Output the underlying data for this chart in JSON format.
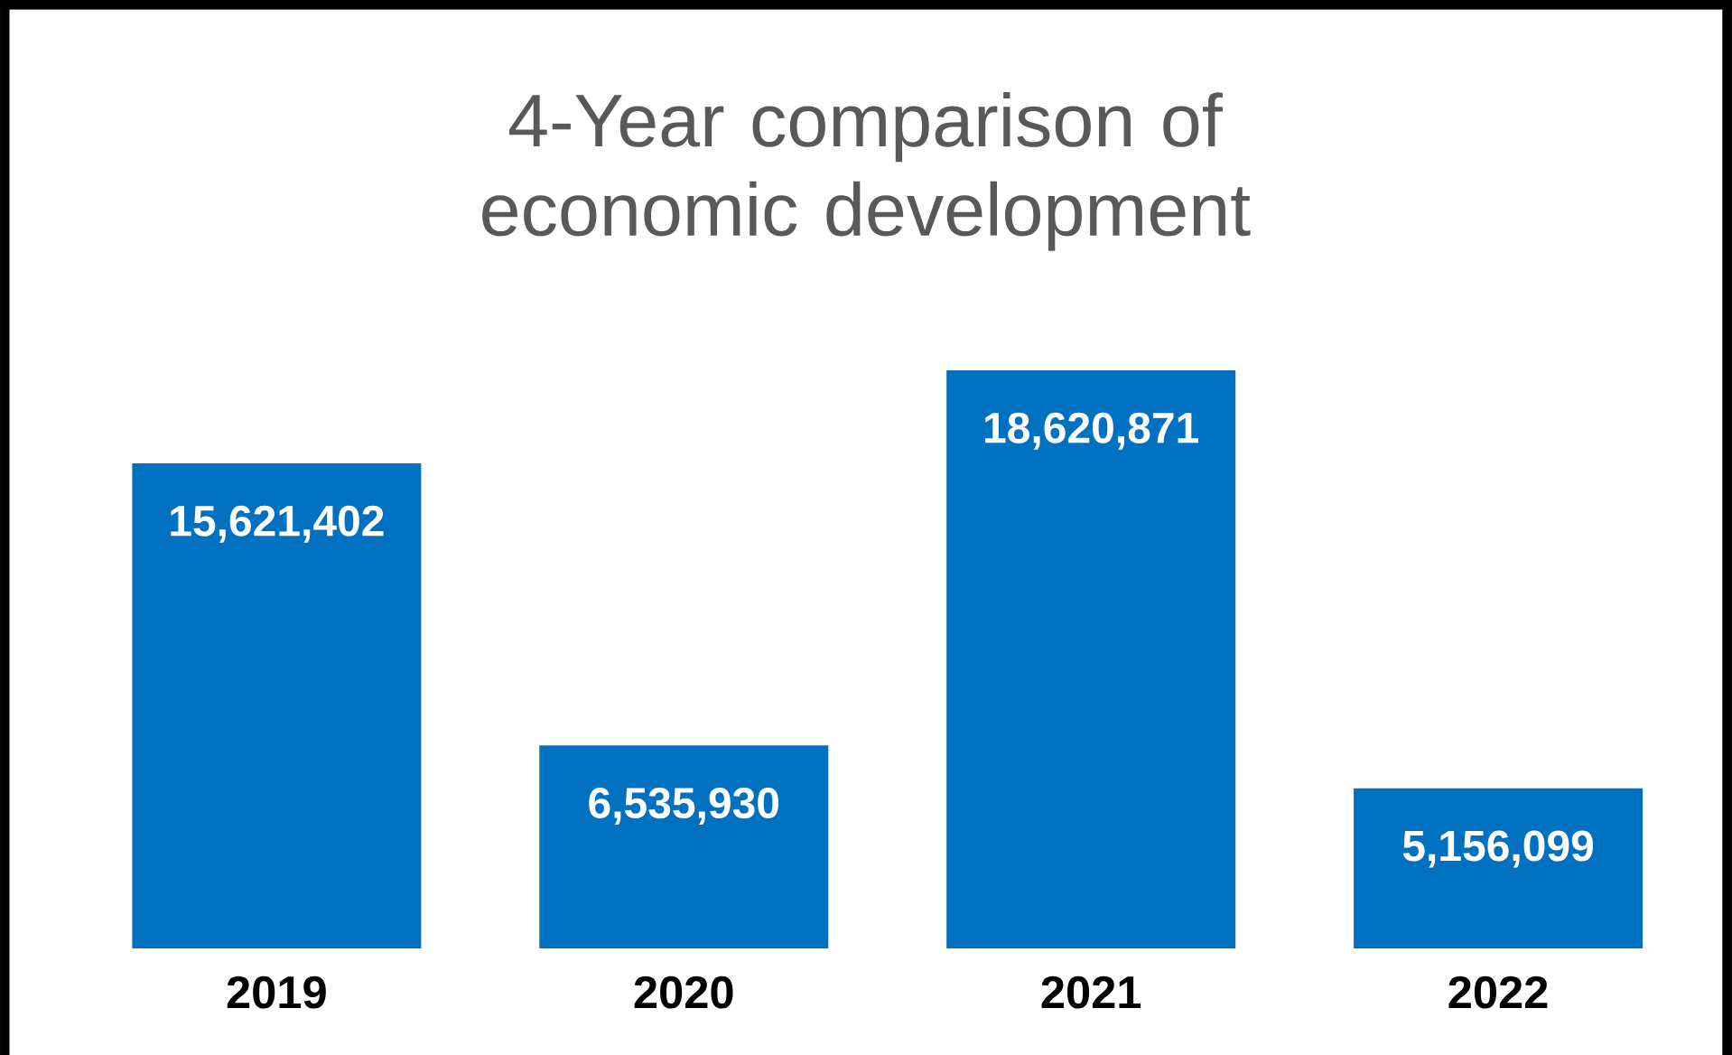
{
  "chart_data": {
    "type": "bar",
    "title": "4-Year comparison of economic development",
    "categories": [
      "2019",
      "2020",
      "2021",
      "2022"
    ],
    "values": [
      15621402,
      6535930,
      18620871,
      5156099
    ],
    "color": "#0070c0",
    "value_labels": [
      "15,621,402",
      "6,535,930",
      "18,620,871",
      "5,156,099"
    ]
  }
}
